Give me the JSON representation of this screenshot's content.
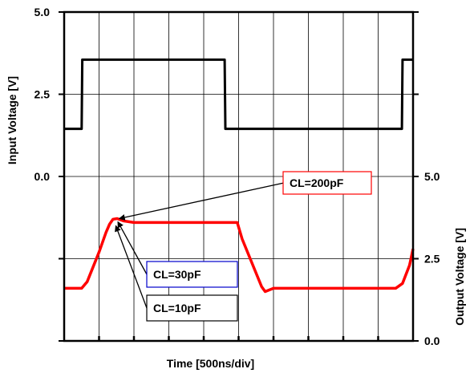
{
  "chart_data": {
    "type": "line",
    "title": "",
    "xlabel": "Time [500ns/div]",
    "x_divisions": 10,
    "xlim": [
      0,
      5000
    ],
    "left_axis": {
      "label": "Input Voltage [V]",
      "ylim": [
        -5.0,
        5.0
      ],
      "ticks": [
        5.0,
        2.5,
        0.0,
        -2.5,
        -5.0
      ],
      "tick_labels": [
        "5.0",
        "2.5",
        "0.0",
        "",
        ""
      ]
    },
    "right_axis": {
      "label": "Output Voltage [V]",
      "ylim": [
        0.0,
        10.0
      ],
      "ticks": [
        0.0,
        2.5,
        5.0,
        7.5,
        10.0
      ],
      "tick_labels": [
        "0.0",
        "2.5",
        "5.0",
        "",
        ""
      ]
    },
    "grid": true,
    "series": [
      {
        "color": "#000000",
        "axis": "left",
        "x": [
          0,
          250,
          260,
          1300,
          1310,
          2300,
          2310,
          3290,
          3300,
          4840,
          4850,
          5000
        ],
        "values": [
          1.45,
          1.45,
          3.55,
          3.55,
          3.55,
          3.55,
          1.45,
          1.45,
          1.45,
          1.45,
          3.55,
          3.55
        ]
      },
      {
        "color": "#ff0000",
        "axis": "right",
        "x": [
          0,
          250,
          330,
          500,
          600,
          650,
          700,
          760,
          850,
          1000,
          1500,
          2000,
          2480,
          2550,
          2830,
          2880,
          3000,
          3500,
          4000,
          4500,
          4750,
          4850,
          4950,
          5000
        ],
        "values": [
          1.6,
          1.6,
          1.8,
          2.7,
          3.3,
          3.55,
          3.7,
          3.72,
          3.65,
          3.6,
          3.6,
          3.6,
          3.6,
          3.1,
          1.65,
          1.5,
          1.6,
          1.6,
          1.6,
          1.6,
          1.6,
          1.75,
          2.3,
          2.8
        ]
      }
    ],
    "annotations": [
      {
        "text": "CL=200pF",
        "border": "#ff0000",
        "point": [
          790,
          3.72
        ]
      },
      {
        "text": "CL=30pF",
        "border": "#0000cc",
        "point": [
          770,
          3.62
        ]
      },
      {
        "text": "CL=10pF",
        "border": "#000000",
        "point": [
          740,
          3.5
        ]
      }
    ]
  }
}
